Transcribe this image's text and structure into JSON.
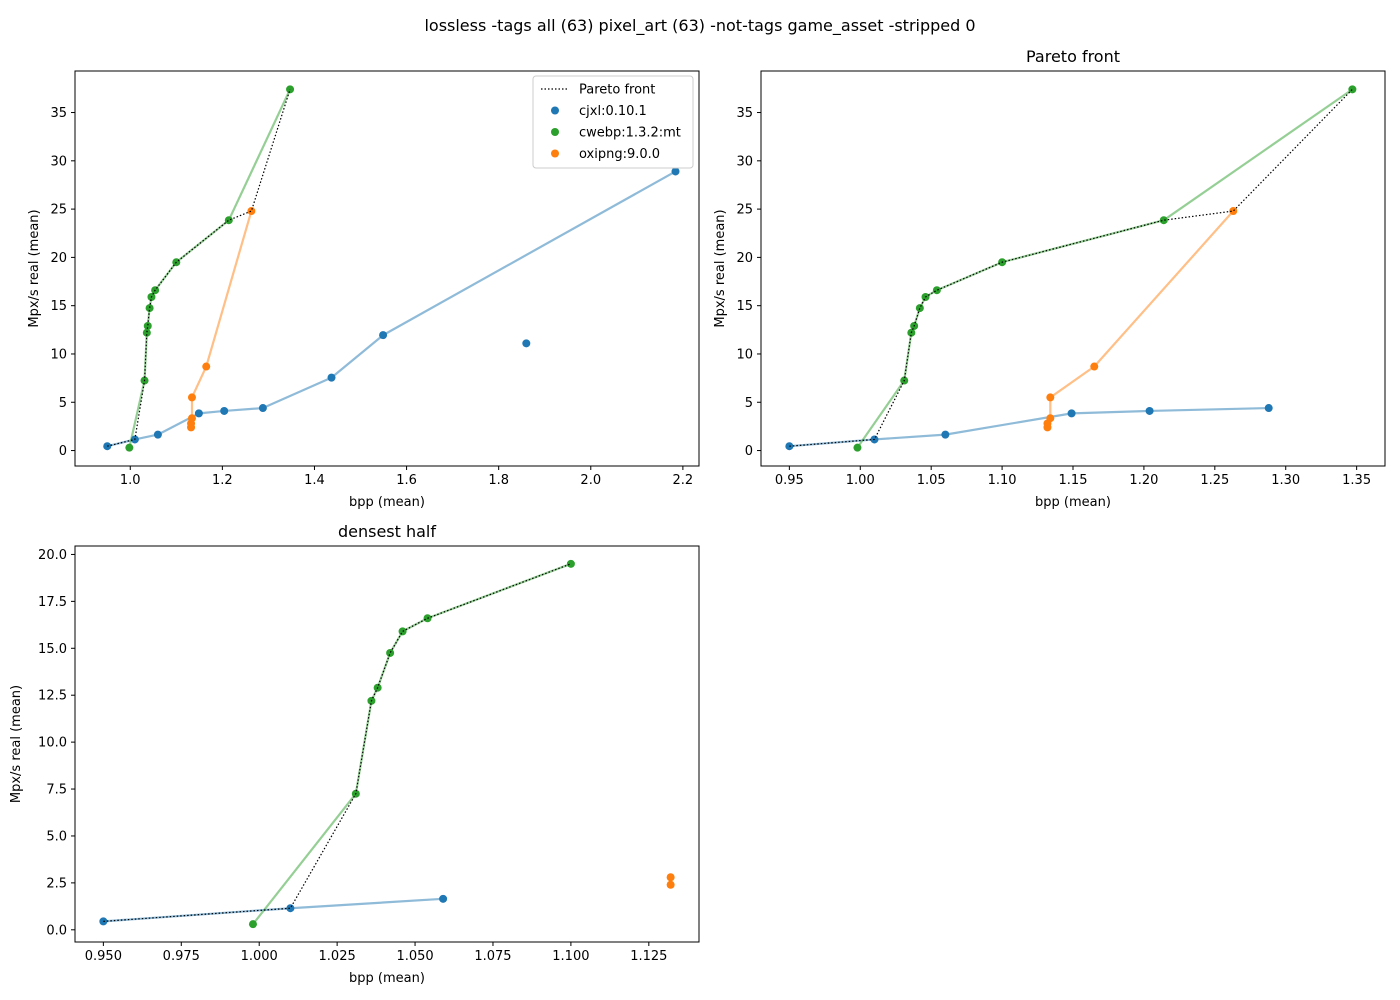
{
  "suptitle": "lossless -tags all (63) pixel_art (63) -not-tags game_asset -stripped 0",
  "colors": {
    "cjxl": "#1f77b4",
    "cwebp": "#2ca02c",
    "oxipng": "#ff7f0e",
    "pareto": "#000000"
  },
  "legend": [
    "Pareto front",
    "cjxl:0.10.1",
    "cwebp:1.3.2:mt",
    "oxipng:9.0.0"
  ],
  "chart_data": [
    {
      "type": "scatter",
      "title": "",
      "xlabel": "bpp (mean)",
      "ylabel": "Mpx/s real (mean)",
      "xlim": [
        0.88,
        2.235
      ],
      "ylim": [
        -1.6,
        39.3
      ],
      "xticks": [
        1.0,
        1.2,
        1.4,
        1.6,
        1.8,
        2.0,
        2.2
      ],
      "xticklabels": [
        "1.0",
        "1.2",
        "1.4",
        "1.6",
        "1.8",
        "2.0",
        "2.2"
      ],
      "yticks": [
        0,
        5,
        10,
        15,
        20,
        25,
        30,
        35
      ],
      "yticklabels": [
        "0",
        "5",
        "10",
        "15",
        "20",
        "25",
        "30",
        "35"
      ],
      "legend_position": "upper right",
      "series": [
        {
          "name": "cjxl:0.10.1",
          "line": [
            [
              0.95,
              0.45
            ],
            [
              1.01,
              1.15
            ],
            [
              1.06,
              1.65
            ],
            [
              1.149,
              3.85
            ],
            [
              1.204,
              4.1
            ],
            [
              1.288,
              4.4
            ],
            [
              1.437,
              7.55
            ],
            [
              1.549,
              11.95
            ],
            [
              2.184,
              28.9
            ]
          ],
          "points": [
            [
              0.95,
              0.45
            ],
            [
              1.01,
              1.15
            ],
            [
              1.06,
              1.65
            ],
            [
              1.149,
              3.85
            ],
            [
              1.204,
              4.1
            ],
            [
              1.288,
              4.4
            ],
            [
              1.437,
              7.55
            ],
            [
              1.549,
              11.95
            ],
            [
              2.184,
              28.9
            ],
            [
              1.86,
              11.1
            ]
          ]
        },
        {
          "name": "cwebp:1.3.2:mt",
          "line": [
            [
              0.998,
              0.3
            ],
            [
              1.031,
              7.25
            ],
            [
              1.036,
              12.2
            ],
            [
              1.038,
              12.9
            ],
            [
              1.042,
              14.75
            ],
            [
              1.046,
              15.9
            ],
            [
              1.054,
              16.6
            ],
            [
              1.1,
              19.5
            ],
            [
              1.214,
              23.85
            ],
            [
              1.347,
              37.4
            ]
          ],
          "points": [
            [
              0.998,
              0.3
            ],
            [
              1.031,
              7.25
            ],
            [
              1.036,
              12.2
            ],
            [
              1.038,
              12.9
            ],
            [
              1.042,
              14.75
            ],
            [
              1.046,
              15.9
            ],
            [
              1.054,
              16.6
            ],
            [
              1.1,
              19.5
            ],
            [
              1.214,
              23.85
            ],
            [
              1.347,
              37.4
            ]
          ]
        },
        {
          "name": "oxipng:9.0.0",
          "line": [
            [
              1.132,
              2.4
            ],
            [
              1.132,
              2.8
            ],
            [
              1.134,
              3.35
            ],
            [
              1.134,
              5.5
            ],
            [
              1.165,
              8.7
            ],
            [
              1.263,
              24.8
            ]
          ],
          "points": [
            [
              1.132,
              2.4
            ],
            [
              1.132,
              2.8
            ],
            [
              1.134,
              3.35
            ],
            [
              1.134,
              5.5
            ],
            [
              1.165,
              8.7
            ],
            [
              1.263,
              24.8
            ]
          ]
        }
      ],
      "pareto": [
        [
          0.95,
          0.45
        ],
        [
          1.01,
          1.15
        ],
        [
          1.031,
          7.25
        ],
        [
          1.036,
          12.2
        ],
        [
          1.038,
          12.9
        ],
        [
          1.042,
          14.75
        ],
        [
          1.046,
          15.9
        ],
        [
          1.054,
          16.6
        ],
        [
          1.1,
          19.5
        ],
        [
          1.214,
          23.85
        ],
        [
          1.263,
          24.8
        ],
        [
          1.347,
          37.4
        ]
      ]
    },
    {
      "type": "scatter",
      "title": "Pareto front",
      "xlabel": "bpp (mean)",
      "ylabel": "Mpx/s real (mean)",
      "xlim": [
        0.93,
        1.37
      ],
      "ylim": [
        -1.6,
        39.3
      ],
      "xticks": [
        0.95,
        1.0,
        1.05,
        1.1,
        1.15,
        1.2,
        1.25,
        1.3,
        1.35
      ],
      "xticklabels": [
        "0.95",
        "1.00",
        "1.05",
        "1.10",
        "1.15",
        "1.20",
        "1.25",
        "1.30",
        "1.35"
      ],
      "yticks": [
        0,
        5,
        10,
        15,
        20,
        25,
        30,
        35
      ],
      "yticklabels": [
        "0",
        "5",
        "10",
        "15",
        "20",
        "25",
        "30",
        "35"
      ],
      "series": [
        {
          "name": "cjxl:0.10.1",
          "line": [
            [
              0.95,
              0.45
            ],
            [
              1.01,
              1.15
            ],
            [
              1.06,
              1.65
            ],
            [
              1.149,
              3.85
            ],
            [
              1.204,
              4.1
            ],
            [
              1.288,
              4.4
            ]
          ],
          "points": [
            [
              0.95,
              0.45
            ],
            [
              1.01,
              1.15
            ],
            [
              1.06,
              1.65
            ],
            [
              1.149,
              3.85
            ],
            [
              1.204,
              4.1
            ],
            [
              1.288,
              4.4
            ]
          ]
        },
        {
          "name": "cwebp:1.3.2:mt",
          "line": [
            [
              0.998,
              0.3
            ],
            [
              1.031,
              7.25
            ],
            [
              1.036,
              12.2
            ],
            [
              1.038,
              12.9
            ],
            [
              1.042,
              14.75
            ],
            [
              1.046,
              15.9
            ],
            [
              1.054,
              16.6
            ],
            [
              1.1,
              19.5
            ],
            [
              1.214,
              23.85
            ],
            [
              1.347,
              37.4
            ]
          ],
          "points": [
            [
              0.998,
              0.3
            ],
            [
              1.031,
              7.25
            ],
            [
              1.036,
              12.2
            ],
            [
              1.038,
              12.9
            ],
            [
              1.042,
              14.75
            ],
            [
              1.046,
              15.9
            ],
            [
              1.054,
              16.6
            ],
            [
              1.1,
              19.5
            ],
            [
              1.214,
              23.85
            ],
            [
              1.347,
              37.4
            ]
          ]
        },
        {
          "name": "oxipng:9.0.0",
          "line": [
            [
              1.132,
              2.4
            ],
            [
              1.132,
              2.8
            ],
            [
              1.134,
              3.35
            ],
            [
              1.134,
              5.5
            ],
            [
              1.165,
              8.7
            ],
            [
              1.263,
              24.8
            ]
          ],
          "points": [
            [
              1.132,
              2.4
            ],
            [
              1.132,
              2.8
            ],
            [
              1.134,
              3.35
            ],
            [
              1.134,
              5.5
            ],
            [
              1.165,
              8.7
            ],
            [
              1.263,
              24.8
            ]
          ]
        }
      ],
      "pareto": [
        [
          0.95,
          0.45
        ],
        [
          1.01,
          1.15
        ],
        [
          1.031,
          7.25
        ],
        [
          1.036,
          12.2
        ],
        [
          1.038,
          12.9
        ],
        [
          1.042,
          14.75
        ],
        [
          1.046,
          15.9
        ],
        [
          1.054,
          16.6
        ],
        [
          1.1,
          19.5
        ],
        [
          1.214,
          23.85
        ],
        [
          1.263,
          24.8
        ],
        [
          1.347,
          37.4
        ]
      ]
    },
    {
      "type": "scatter",
      "title": "densest half",
      "xlabel": "bpp (mean)",
      "ylabel": "Mpx/s real (mean)",
      "xlim": [
        0.9409,
        1.1411
      ],
      "ylim": [
        -0.65,
        20.45
      ],
      "xticks": [
        0.95,
        0.975,
        1.0,
        1.025,
        1.05,
        1.075,
        1.1,
        1.125
      ],
      "xticklabels": [
        "0.950",
        "0.975",
        "1.000",
        "1.025",
        "1.050",
        "1.075",
        "1.100",
        "1.125"
      ],
      "yticks": [
        0,
        2.5,
        5,
        7.5,
        10,
        12.5,
        15,
        17.5,
        20
      ],
      "yticklabels": [
        "0.0",
        "2.5",
        "5.0",
        "7.5",
        "10.0",
        "12.5",
        "15.0",
        "17.5",
        "20.0"
      ],
      "series": [
        {
          "name": "cjxl:0.10.1",
          "line": [
            [
              0.95,
              0.45
            ],
            [
              1.01,
              1.15
            ],
            [
              1.059,
              1.65
            ]
          ],
          "points": [
            [
              0.95,
              0.45
            ],
            [
              1.01,
              1.15
            ],
            [
              1.059,
              1.65
            ]
          ]
        },
        {
          "name": "cwebp:1.3.2:mt",
          "line": [
            [
              0.998,
              0.3
            ],
            [
              1.031,
              7.25
            ],
            [
              1.036,
              12.2
            ],
            [
              1.038,
              12.9
            ],
            [
              1.042,
              14.75
            ],
            [
              1.046,
              15.9
            ],
            [
              1.054,
              16.6
            ],
            [
              1.1,
              19.5
            ]
          ],
          "points": [
            [
              0.998,
              0.3
            ],
            [
              1.031,
              7.25
            ],
            [
              1.036,
              12.2
            ],
            [
              1.038,
              12.9
            ],
            [
              1.042,
              14.75
            ],
            [
              1.046,
              15.9
            ],
            [
              1.054,
              16.6
            ],
            [
              1.1,
              19.5
            ]
          ]
        },
        {
          "name": "oxipng:9.0.0",
          "line": [],
          "points": [
            [
              1.132,
              2.4
            ],
            [
              1.132,
              2.8
            ]
          ]
        }
      ],
      "pareto": [
        [
          0.95,
          0.45
        ],
        [
          1.01,
          1.15
        ],
        [
          1.031,
          7.25
        ],
        [
          1.036,
          12.2
        ],
        [
          1.038,
          12.9
        ],
        [
          1.042,
          14.75
        ],
        [
          1.046,
          15.9
        ],
        [
          1.054,
          16.6
        ],
        [
          1.1,
          19.5
        ]
      ]
    }
  ]
}
